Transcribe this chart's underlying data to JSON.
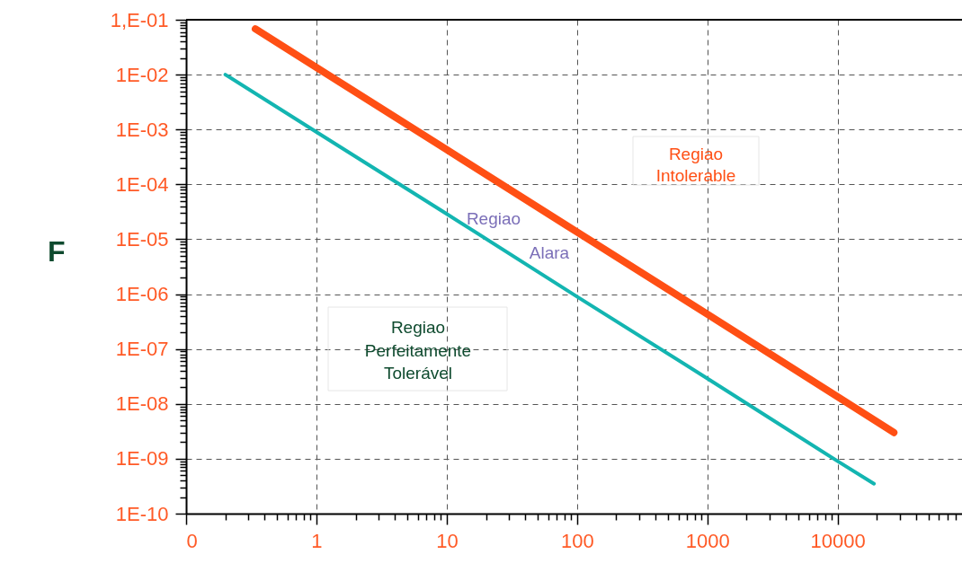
{
  "chart_data": {
    "type": "line",
    "ylabel": "F",
    "log": "xy",
    "grid": true,
    "marker": "none",
    "line_style": "solid",
    "xlim": [
      0.1,
      90000
    ],
    "ylim": [
      1e-10,
      0.1
    ],
    "xticks": [
      {
        "value": 0.1,
        "label": "0"
      },
      {
        "value": 0.2,
        "label": null
      },
      {
        "value": 0.3,
        "label": null
      },
      {
        "value": 0.4,
        "label": null
      },
      {
        "value": 0.5,
        "label": null
      },
      {
        "value": 0.6,
        "label": null
      },
      {
        "value": 0.7,
        "label": null
      },
      {
        "value": 0.8,
        "label": null
      },
      {
        "value": 0.9,
        "label": null
      },
      1,
      {
        "value": 2,
        "label": null
      },
      {
        "value": 3,
        "label": null
      },
      {
        "value": 4,
        "label": null
      },
      {
        "value": 5,
        "label": null
      },
      {
        "value": 6,
        "label": null
      },
      {
        "value": 7,
        "label": null
      },
      {
        "value": 8,
        "label": null
      },
      {
        "value": 9,
        "label": null
      },
      10,
      {
        "value": 20,
        "label": null
      },
      {
        "value": 30,
        "label": null
      },
      {
        "value": 40,
        "label": null
      },
      {
        "value": 50,
        "label": null
      },
      {
        "value": 60,
        "label": null
      },
      {
        "value": 70,
        "label": null
      },
      {
        "value": 80,
        "label": null
      },
      {
        "value": 90,
        "label": null
      },
      100,
      {
        "value": 200,
        "label": null
      },
      {
        "value": 300,
        "label": null
      },
      {
        "value": 400,
        "label": null
      },
      {
        "value": 500,
        "label": null
      },
      {
        "value": 600,
        "label": null
      },
      {
        "value": 700,
        "label": null
      },
      {
        "value": 800,
        "label": null
      },
      {
        "value": 900,
        "label": null
      },
      1000,
      {
        "value": 2000,
        "label": null
      },
      {
        "value": 3000,
        "label": null
      },
      {
        "value": 4000,
        "label": null
      },
      {
        "value": 5000,
        "label": null
      },
      {
        "value": 6000,
        "label": null
      },
      {
        "value": 7000,
        "label": null
      },
      {
        "value": 8000,
        "label": null
      },
      {
        "value": 9000,
        "label": null
      },
      10000,
      {
        "value": 20000,
        "label": null
      },
      {
        "value": 30000,
        "label": null
      },
      {
        "value": 40000,
        "label": null
      },
      {
        "value": 50000,
        "label": null
      },
      {
        "value": 60000,
        "label": null
      },
      {
        "value": 70000,
        "label": null
      },
      {
        "value": 80000,
        "label": null
      }
    ],
    "yticks": [
      {
        "value": 1e-10,
        "label": "1E-10"
      },
      {
        "value": 2e-10,
        "label": null
      },
      {
        "value": 3e-10,
        "label": null
      },
      {
        "value": 4e-10,
        "label": null
      },
      {
        "value": 5e-10,
        "label": null
      },
      {
        "value": 6e-10,
        "label": null
      },
      {
        "value": 7e-10,
        "label": null
      },
      {
        "value": 8e-10,
        "label": null
      },
      {
        "value": 9e-10,
        "label": null
      },
      {
        "value": 1e-09,
        "label": "1E-09"
      },
      {
        "value": 2e-09,
        "label": null
      },
      {
        "value": 3e-09,
        "label": null
      },
      {
        "value": 4e-09,
        "label": null
      },
      {
        "value": 5e-09,
        "label": null
      },
      {
        "value": 6e-09,
        "label": null
      },
      {
        "value": 7e-09,
        "label": null
      },
      {
        "value": 8e-09,
        "label": null
      },
      {
        "value": 9e-09,
        "label": null
      },
      {
        "value": 1e-08,
        "label": "1E-08"
      },
      {
        "value": 2e-08,
        "label": null
      },
      {
        "value": 3e-08,
        "label": null
      },
      {
        "value": 4e-08,
        "label": null
      },
      {
        "value": 5e-08,
        "label": null
      },
      {
        "value": 6e-08,
        "label": null
      },
      {
        "value": 7e-08,
        "label": null
      },
      {
        "value": 8e-08,
        "label": null
      },
      {
        "value": 9e-08,
        "label": null
      },
      {
        "value": 1e-07,
        "label": "1E-07"
      },
      {
        "value": 2e-07,
        "label": null
      },
      {
        "value": 3e-07,
        "label": null
      },
      {
        "value": 4e-07,
        "label": null
      },
      {
        "value": 5e-07,
        "label": null
      },
      {
        "value": 6e-07,
        "label": null
      },
      {
        "value": 7e-07,
        "label": null
      },
      {
        "value": 8e-07,
        "label": null
      },
      {
        "value": 9e-07,
        "label": null
      },
      {
        "value": 1e-06,
        "label": "1E-06"
      },
      {
        "value": 2e-06,
        "label": null
      },
      {
        "value": 3e-06,
        "label": null
      },
      {
        "value": 4e-06,
        "label": null
      },
      {
        "value": 5e-06,
        "label": null
      },
      {
        "value": 6e-06,
        "label": null
      },
      {
        "value": 7e-06,
        "label": null
      },
      {
        "value": 8e-06,
        "label": null
      },
      {
        "value": 9e-06,
        "label": null
      },
      {
        "value": 1e-05,
        "label": "1E-05"
      },
      {
        "value": 2e-05,
        "label": null
      },
      {
        "value": 3e-05,
        "label": null
      },
      {
        "value": 4e-05,
        "label": null
      },
      {
        "value": 5e-05,
        "label": null
      },
      {
        "value": 6e-05,
        "label": null
      },
      {
        "value": 7e-05,
        "label": null
      },
      {
        "value": 8e-05,
        "label": null
      },
      {
        "value": 9e-05,
        "label": null
      },
      {
        "value": 0.0001,
        "label": "1E-04"
      },
      {
        "value": 0.0002,
        "label": null
      },
      {
        "value": 0.0003,
        "label": null
      },
      {
        "value": 0.0004,
        "label": null
      },
      {
        "value": 0.0005,
        "label": null
      },
      {
        "value": 0.0006,
        "label": null
      },
      {
        "value": 0.0007,
        "label": null
      },
      {
        "value": 0.0008,
        "label": null
      },
      {
        "value": 0.0009,
        "label": null
      },
      {
        "value": 0.001,
        "label": "1E-03"
      },
      {
        "value": 0.002,
        "label": null
      },
      {
        "value": 0.003,
        "label": null
      },
      {
        "value": 0.004,
        "label": null
      },
      {
        "value": 0.005,
        "label": null
      },
      {
        "value": 0.006,
        "label": null
      },
      {
        "value": 0.007,
        "label": null
      },
      {
        "value": 0.008,
        "label": null
      },
      {
        "value": 0.009,
        "label": null
      },
      {
        "value": 0.01,
        "label": "1E-02"
      },
      {
        "value": 0.02,
        "label": null
      },
      {
        "value": 0.03,
        "label": null
      },
      {
        "value": 0.04,
        "label": null
      },
      {
        "value": 0.05,
        "label": null
      },
      {
        "value": 0.06,
        "label": null
      },
      {
        "value": 0.07,
        "label": null
      },
      {
        "value": 0.08,
        "label": null
      },
      {
        "value": 0.09,
        "label": null
      },
      {
        "value": 0.1,
        "label": "1,E-01"
      }
    ],
    "series": [
      {
        "color": "#ff4f14",
        "x": [
          0.34,
          1,
          10,
          100,
          1000,
          10000,
          27000
        ],
        "values": [
          0.068,
          0.0135,
          0.00043,
          1.35e-05,
          4.3e-07,
          1.35e-08,
          3e-09
        ]
      },
      {
        "color": "#13b5b1",
        "x": [
          0.2,
          1,
          10,
          100,
          1000,
          10000,
          19000
        ],
        "values": [
          0.01,
          0.0009,
          2.9e-05,
          9e-07,
          2.9e-08,
          9e-10,
          3.5e-10
        ]
      }
    ],
    "annotations": [
      "Regiao\nIntolerable",
      "Regiao\nAlara",
      "Regiao\nPerfeitamente\nTolerável"
    ]
  }
}
